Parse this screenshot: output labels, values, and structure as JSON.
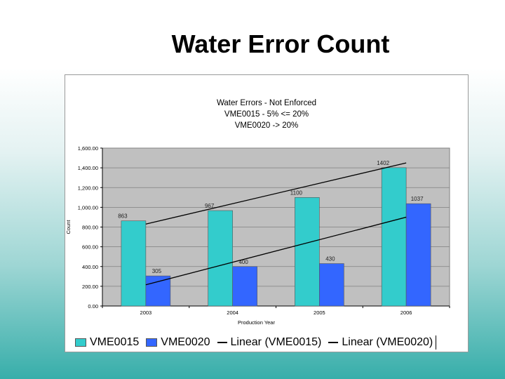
{
  "slide": {
    "title": "Water Error Count"
  },
  "chart_data": {
    "type": "bar",
    "title_lines": [
      "Water Errors - Not Enforced",
      "VME0015 - 5% <= 20%",
      "VME0020 -> 20%"
    ],
    "xlabel": "Production Year",
    "ylabel": "Count",
    "categories": [
      "2003",
      "2004",
      "2005",
      "2006"
    ],
    "ylim": [
      0,
      1600
    ],
    "y_ticks": [
      "0.00",
      "200.00",
      "400.00",
      "600.00",
      "800.00",
      "1,000.00",
      "1,200.00",
      "1,400.00",
      "1,600.00"
    ],
    "series": [
      {
        "name": "VME0015",
        "values": [
          863,
          967,
          1100,
          1402
        ],
        "labels": [
          "863",
          "967",
          "1100",
          "1402"
        ],
        "color": "#33cccc"
      },
      {
        "name": "VME0020",
        "values": [
          305,
          400,
          430,
          1037
        ],
        "labels": [
          "305",
          "400",
          "430",
          "1037"
        ],
        "color": "#3366ff"
      }
    ],
    "trendlines": [
      {
        "name": "Linear (VME0015)",
        "from": 830,
        "to": 1450,
        "color": "#000000"
      },
      {
        "name": "Linear (VME0020)",
        "from": 215,
        "to": 900,
        "color": "#000000"
      }
    ],
    "plot_background": "#c0c0c0",
    "grid": true,
    "legend": "bottom"
  }
}
